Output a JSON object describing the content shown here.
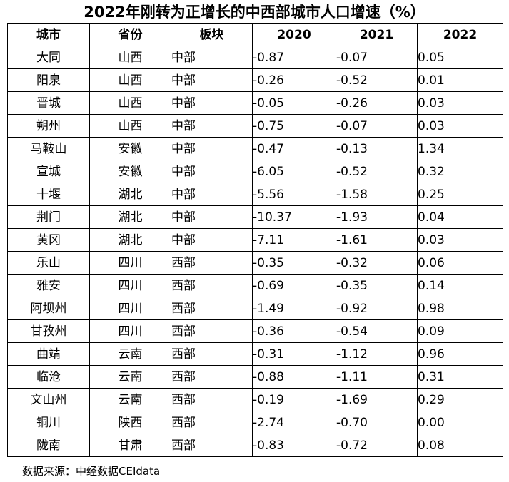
{
  "title": "2022年刚转为正增长的中西部城市人口增速（%）",
  "table": {
    "headers": [
      "城市",
      "省份",
      "板块",
      "2020",
      "2021",
      "2022"
    ],
    "rows": [
      [
        "大同",
        "山西",
        "中部",
        "-0.87",
        "-0.07",
        "0.05"
      ],
      [
        "阳泉",
        "山西",
        "中部",
        "-0.26",
        "-0.52",
        "0.01"
      ],
      [
        "晋城",
        "山西",
        "中部",
        "-0.05",
        "-0.26",
        "0.03"
      ],
      [
        "朔州",
        "山西",
        "中部",
        "-0.75",
        "-0.07",
        "0.03"
      ],
      [
        "马鞍山",
        "安徽",
        "中部",
        "-0.47",
        "-0.13",
        "1.34"
      ],
      [
        "宣城",
        "安徽",
        "中部",
        "-6.05",
        "-0.52",
        "0.32"
      ],
      [
        "十堰",
        "湖北",
        "中部",
        "-5.56",
        "-1.58",
        "0.25"
      ],
      [
        "荆门",
        "湖北",
        "中部",
        "-10.37",
        "-1.93",
        "0.04"
      ],
      [
        "黄冈",
        "湖北",
        "中部",
        "-7.11",
        "-1.61",
        "0.03"
      ],
      [
        "乐山",
        "四川",
        "西部",
        "-0.35",
        "-0.32",
        "0.06"
      ],
      [
        "雅安",
        "四川",
        "西部",
        "-0.69",
        "-0.35",
        "0.14"
      ],
      [
        "阿坝州",
        "四川",
        "西部",
        "-1.49",
        "-0.92",
        "0.98"
      ],
      [
        "甘孜州",
        "四川",
        "西部",
        "-0.36",
        "-0.54",
        "0.09"
      ],
      [
        "曲靖",
        "云南",
        "西部",
        "-0.31",
        "-1.12",
        "0.96"
      ],
      [
        "临沧",
        "云南",
        "西部",
        "-0.88",
        "-1.11",
        "0.31"
      ],
      [
        "文山州",
        "云南",
        "西部",
        "-0.19",
        "-1.69",
        "0.29"
      ],
      [
        "铜川",
        "陕西",
        "西部",
        "-2.74",
        "-0.70",
        "0.00"
      ],
      [
        "陇南",
        "甘肃",
        "西部",
        "-0.83",
        "-0.72",
        "0.08"
      ]
    ]
  },
  "source": "数据来源：中经数据CEIdata"
}
